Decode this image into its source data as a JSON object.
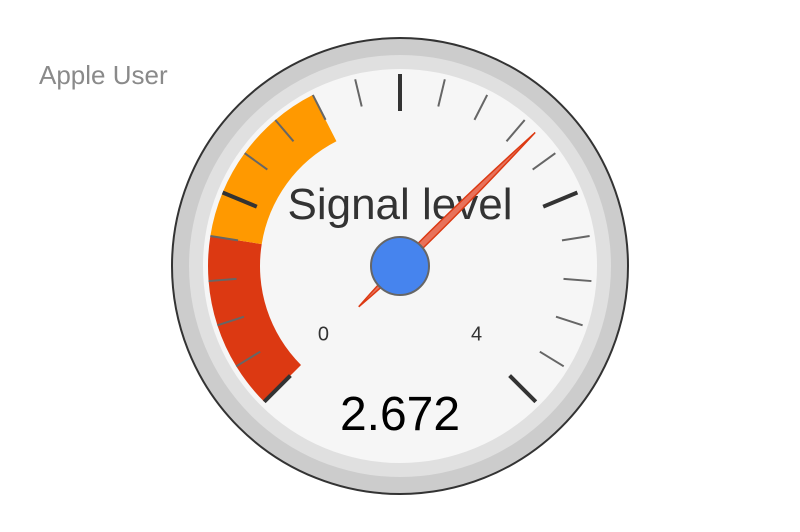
{
  "header": {
    "user_label": "Apple User"
  },
  "chart_data": {
    "type": "gauge",
    "title": "Signal level",
    "value": 2.672,
    "value_text": "2.672",
    "min": 0,
    "max": 4,
    "min_label": "0",
    "max_label": "4",
    "major_ticks": 5,
    "minor_ticks_per_major": 5,
    "bands": [
      {
        "name": "red",
        "from": 0,
        "to": 0.8,
        "color": "#dc3912"
      },
      {
        "name": "yellow",
        "from": 0.8,
        "to": 1.6,
        "color": "#ff9900"
      }
    ],
    "colors": {
      "outer_ring": "#cccccc",
      "inner_ring": "#e0e0e0",
      "face": "#f6f6f6",
      "needle": "#dc3912",
      "needle_hub": "#4684ee",
      "major_tick": "#333333",
      "minor_tick": "#666666"
    }
  }
}
